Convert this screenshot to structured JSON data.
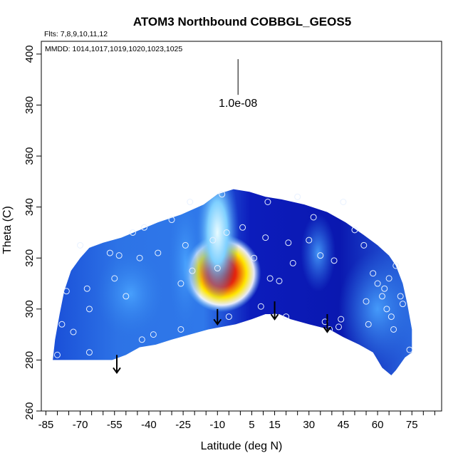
{
  "chart_data": {
    "type": "heatmap",
    "title": "ATOM3 Northbound COBBGL_GEOS5",
    "flights_text": "Flts: 7,8,9,10,11,12",
    "mmdd_text": "MMDD: 1014,1017,1019,1020,1023,1025",
    "xlabel": "Latitude (deg N)",
    "ylabel": "Theta (C)",
    "xlim": [
      -87,
      88
    ],
    "ylim": [
      260,
      405
    ],
    "x_ticks": [
      -85,
      -70,
      -55,
      -40,
      -25,
      -10,
      5,
      15,
      30,
      45,
      60,
      75
    ],
    "x_tick_labels": [
      "-85",
      "-70",
      "-55",
      "-40",
      "-25",
      "-10",
      "5",
      "15",
      "30",
      "45",
      "60",
      "75"
    ],
    "y_ticks": [
      260,
      280,
      300,
      320,
      340,
      360,
      380,
      400
    ],
    "y_tick_labels": [
      "260",
      "280",
      "300",
      "320",
      "340",
      "360",
      "380",
      "400"
    ],
    "scale_label": "1.0e-08",
    "scale_bar": {
      "x": -1,
      "y_top": 398,
      "y_bottom": 384
    },
    "field_boundary": [
      [
        -82,
        280
      ],
      [
        -81,
        288
      ],
      [
        -79,
        298
      ],
      [
        -77,
        307
      ],
      [
        -74,
        315
      ],
      [
        -70,
        320
      ],
      [
        -66,
        324
      ],
      [
        -60,
        326
      ],
      [
        -52,
        328
      ],
      [
        -44,
        331
      ],
      [
        -36,
        334
      ],
      [
        -26,
        337
      ],
      [
        -16,
        341
      ],
      [
        -10,
        345
      ],
      [
        -3,
        347
      ],
      [
        4,
        346
      ],
      [
        11,
        344
      ],
      [
        18,
        343
      ],
      [
        28,
        341
      ],
      [
        38,
        338
      ],
      [
        46,
        334
      ],
      [
        54,
        329
      ],
      [
        60,
        325
      ],
      [
        65,
        321
      ],
      [
        68,
        317
      ],
      [
        71,
        310
      ],
      [
        73,
        302
      ],
      [
        75,
        292
      ],
      [
        75,
        283
      ],
      [
        72,
        281
      ],
      [
        68,
        276
      ],
      [
        66,
        274
      ],
      [
        62,
        277
      ],
      [
        58,
        283
      ],
      [
        52,
        286
      ],
      [
        45,
        289
      ],
      [
        39,
        292
      ],
      [
        30,
        294
      ],
      [
        22,
        296
      ],
      [
        17,
        298
      ],
      [
        11,
        298
      ],
      [
        5,
        296
      ],
      [
        -2,
        294
      ],
      [
        -8,
        293
      ],
      [
        -14,
        292
      ],
      [
        -22,
        290
      ],
      [
        -30,
        288
      ],
      [
        -37,
        286
      ],
      [
        -44,
        285
      ],
      [
        -50,
        282
      ],
      [
        -56,
        280
      ],
      [
        -68,
        280
      ],
      [
        -82,
        280
      ]
    ],
    "field_blobs": [
      {
        "x": -8,
        "y": 314,
        "rx": 9,
        "ry": 8,
        "level": "max"
      },
      {
        "x": -10,
        "y": 330,
        "rx": 5,
        "ry": 14,
        "level": "mid"
      },
      {
        "x": -48,
        "y": 306,
        "rx": 8,
        "ry": 9,
        "level": "low"
      },
      {
        "x": -24,
        "y": 318,
        "rx": 4,
        "ry": 14,
        "level": "low"
      },
      {
        "x": 60,
        "y": 300,
        "rx": 9,
        "ry": 12,
        "level": "low"
      },
      {
        "x": 34,
        "y": 322,
        "rx": 4,
        "ry": 8,
        "level": "low"
      }
    ],
    "observations": [
      [
        -80,
        282
      ],
      [
        -78,
        294
      ],
      [
        -76,
        307
      ],
      [
        -73,
        291
      ],
      [
        -70,
        325
      ],
      [
        -67,
        308
      ],
      [
        -66,
        300
      ],
      [
        -66,
        283
      ],
      [
        -57,
        322
      ],
      [
        -55,
        312
      ],
      [
        -53,
        321
      ],
      [
        -50,
        305
      ],
      [
        -47,
        330
      ],
      [
        -44,
        320
      ],
      [
        -43,
        288
      ],
      [
        -42,
        332
      ],
      [
        -38,
        290
      ],
      [
        -36,
        322
      ],
      [
        -30,
        335
      ],
      [
        -26,
        310
      ],
      [
        -26,
        292
      ],
      [
        -24,
        325
      ],
      [
        -22,
        342
      ],
      [
        -21,
        315
      ],
      [
        -12,
        327
      ],
      [
        -10,
        316
      ],
      [
        -8,
        345
      ],
      [
        -6,
        330
      ],
      [
        -5,
        297
      ],
      [
        1,
        332
      ],
      [
        6,
        320
      ],
      [
        9,
        301
      ],
      [
        11,
        328
      ],
      [
        12,
        342
      ],
      [
        13,
        312
      ],
      [
        15,
        297
      ],
      [
        17,
        311
      ],
      [
        20,
        297
      ],
      [
        21,
        326
      ],
      [
        23,
        318
      ],
      [
        25,
        344
      ],
      [
        30,
        327
      ],
      [
        32,
        336
      ],
      [
        35,
        321
      ],
      [
        37,
        295
      ],
      [
        39,
        292
      ],
      [
        41,
        319
      ],
      [
        43,
        293
      ],
      [
        44,
        296
      ],
      [
        45,
        342
      ],
      [
        50,
        331
      ],
      [
        54,
        325
      ],
      [
        55,
        303
      ],
      [
        56,
        294
      ],
      [
        58,
        314
      ],
      [
        60,
        310
      ],
      [
        62,
        305
      ],
      [
        63,
        308
      ],
      [
        64,
        300
      ],
      [
        65,
        312
      ],
      [
        66,
        297
      ],
      [
        67,
        292
      ],
      [
        68,
        317
      ],
      [
        70,
        305
      ],
      [
        71,
        302
      ],
      [
        74,
        284
      ]
    ],
    "arrows": [
      {
        "x": -54,
        "y_from": 282,
        "y_to": 275
      },
      {
        "x": -10,
        "y_from": 300,
        "y_to": 294
      },
      {
        "x": 15,
        "y_from": 303,
        "y_to": 296
      },
      {
        "x": 38,
        "y_from": 298,
        "y_to": 291
      }
    ],
    "colors": {
      "field_low": "#0a14b4",
      "field_mid": "#2f7de8",
      "field_light": "#a9e6ff",
      "field_peak_outer": "#ffe400",
      "field_peak_inner": "#e4210f"
    }
  }
}
